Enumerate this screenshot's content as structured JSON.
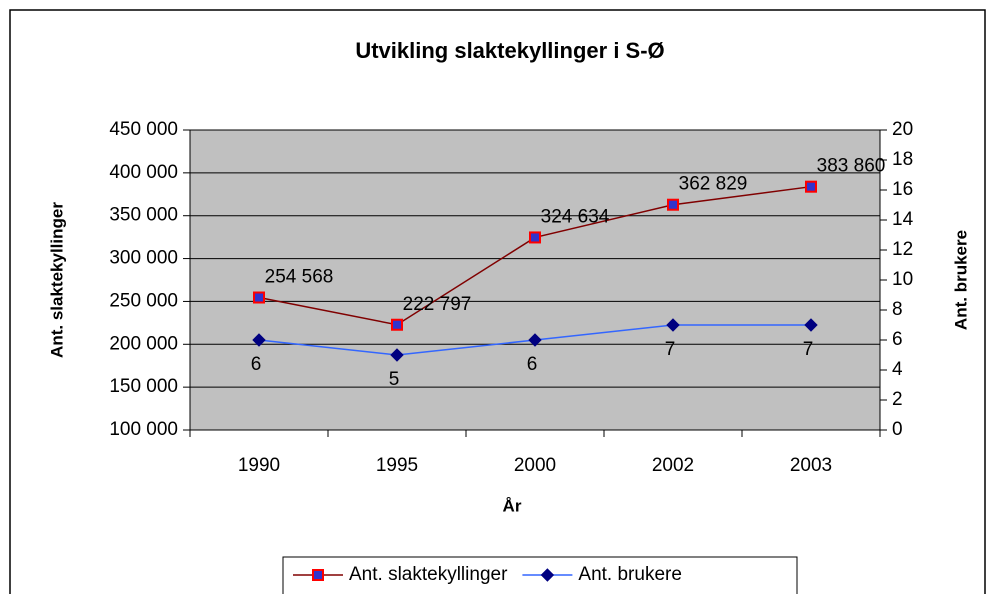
{
  "chart_data": {
    "type": "line",
    "title": "Utvikling slaktekyllinger i S-Ø",
    "x_label": "År",
    "y_label": "Ant. slaktekyllinger",
    "y2_label": "Ant. brukere",
    "categories": [
      "1990",
      "1995",
      "2000",
      "2002",
      "2003"
    ],
    "series": [
      {
        "name": "Ant. slaktekyllinger",
        "color": "#800000",
        "marker_color": "#3333cc",
        "marker_edge": "#ff0000",
        "marker": "square",
        "values": [
          254568,
          222797,
          324634,
          362829,
          383860
        ],
        "value_labels": [
          "254 568",
          "222 797",
          "324 634",
          "362 829",
          "383 860"
        ]
      },
      {
        "name": "Ant. brukere",
        "color": "#3366ff",
        "marker_color": "#000080",
        "marker_edge": "#000080",
        "marker": "diamond",
        "axis": "y2",
        "values": [
          6,
          5,
          6,
          7,
          7
        ]
      }
    ],
    "ylim": [
      100000,
      450000
    ],
    "yticks": [
      {
        "value": 100000,
        "label": "100 000"
      },
      {
        "value": 150000,
        "label": "150 000"
      },
      {
        "value": 200000,
        "label": "200 000"
      },
      {
        "value": 250000,
        "label": "250 000"
      },
      {
        "value": 300000,
        "label": "300 000"
      },
      {
        "value": 350000,
        "label": "350 000"
      },
      {
        "value": 400000,
        "label": "400 000"
      },
      {
        "value": 450000,
        "label": "450 000"
      }
    ],
    "y2lim": [
      0,
      20
    ],
    "y2ticks": [
      0,
      2,
      4,
      6,
      8,
      10,
      12,
      14,
      16,
      18,
      20
    ],
    "grid": true,
    "plot_background": "#c0c0c0",
    "legend": "bottom"
  }
}
